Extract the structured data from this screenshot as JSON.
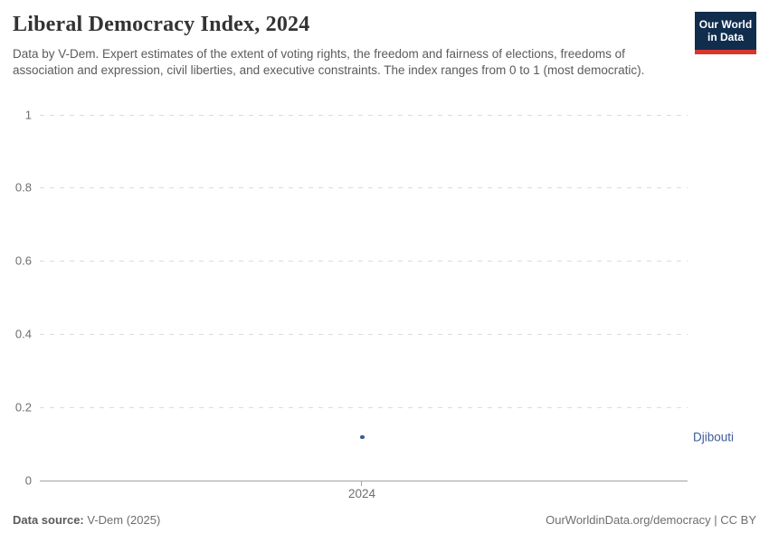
{
  "header": {
    "title": "Liberal Democracy Index, 2024",
    "subtitle": "Data by V-Dem. Expert estimates of the extent of voting rights, the freedom and fairness of elections, freedoms of association and expression, civil liberties, and executive constraints. The index ranges from 0 to 1 (most democratic).",
    "logo": {
      "line1": "Our World",
      "line2": "in Data",
      "bg_color": "#102d4e",
      "accent_color": "#d8352b"
    }
  },
  "chart_data": {
    "type": "scatter",
    "title": "Liberal Democracy Index, 2024",
    "x": [
      2024
    ],
    "categories": [
      "2024"
    ],
    "series": [
      {
        "name": "Djibouti",
        "values": [
          0.12
        ]
      }
    ],
    "xlabel": "",
    "ylabel": "",
    "ylim": [
      0,
      1
    ],
    "ytick_labels": [
      "1",
      "0.8",
      "0.6",
      "0.4",
      "0.2",
      "0"
    ],
    "ytick_values": [
      1,
      0.8,
      0.6,
      0.4,
      0.2,
      0
    ],
    "xticks": [
      "2024"
    ],
    "grid": "horizontal-dashed",
    "legend_position": "right-of-point",
    "point_color": "#3d5a96",
    "entity_label_color": "#3d5a96"
  },
  "footer": {
    "source_label": "Data source:",
    "source_value": "V-Dem (2025)",
    "rights": "OurWorldinData.org/democracy | CC BY"
  }
}
